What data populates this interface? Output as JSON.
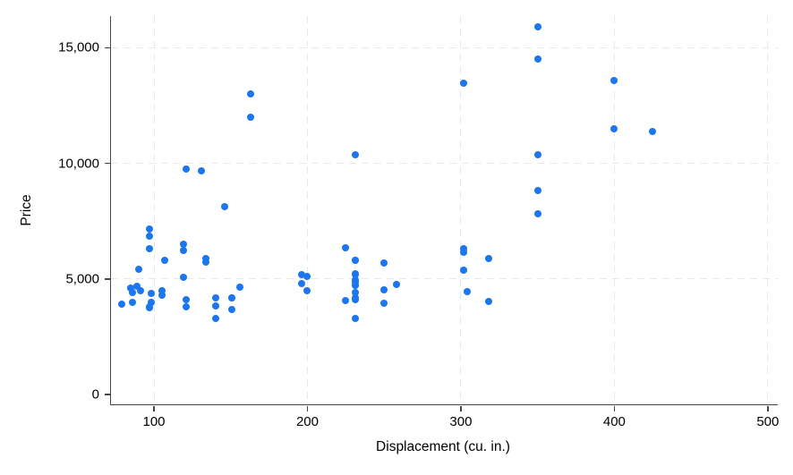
{
  "chart_data": {
    "type": "scatter",
    "title": "",
    "xlabel": "Displacement (cu. in.)",
    "ylabel": "Price",
    "legend": "none",
    "grid": "dashed light-gray gridlines at every labeled tick (no gridline at y=0)",
    "x_ticks": {
      "values": [
        100,
        200,
        300,
        400,
        500
      ],
      "labels": [
        "100",
        "200",
        "300",
        "400",
        "500"
      ]
    },
    "y_ticks": {
      "values": [
        0,
        5000,
        10000,
        15000
      ],
      "labels": [
        "0",
        "5,000",
        "10,000",
        "15,000"
      ]
    },
    "x_domain": [
      72,
      506.5
    ],
    "y_domain": [
      -426,
      16365
    ],
    "style": {
      "marker_color": "#1c76ee",
      "marker_diameter_px": 8,
      "axis_color": "#454545",
      "grid_color": "#e9e9e9",
      "label_color": "#000000",
      "background": "#ffffff"
    },
    "points": [
      [
        79,
        3895
      ],
      [
        85,
        4589
      ],
      [
        86,
        3995
      ],
      [
        86,
        4425
      ],
      [
        89,
        4697
      ],
      [
        90,
        5397
      ],
      [
        91,
        4499
      ],
      [
        97,
        3748
      ],
      [
        97,
        3798
      ],
      [
        97,
        6295
      ],
      [
        97,
        6850
      ],
      [
        97,
        7140
      ],
      [
        98,
        3984
      ],
      [
        98,
        4389
      ],
      [
        105,
        4296
      ],
      [
        105,
        4482
      ],
      [
        107,
        5799
      ],
      [
        119,
        5079
      ],
      [
        119,
        6229
      ],
      [
        119,
        6486
      ],
      [
        121,
        3799
      ],
      [
        121,
        4099
      ],
      [
        121,
        9735
      ],
      [
        131,
        9690
      ],
      [
        134,
        5719
      ],
      [
        134,
        5899
      ],
      [
        140,
        3291
      ],
      [
        140,
        3829
      ],
      [
        140,
        4187
      ],
      [
        146,
        8129
      ],
      [
        151,
        3667
      ],
      [
        151,
        4172
      ],
      [
        151,
        4195
      ],
      [
        156,
        4647
      ],
      [
        163,
        11995
      ],
      [
        163,
        12990
      ],
      [
        196,
        4816
      ],
      [
        196,
        5189
      ],
      [
        200,
        4504
      ],
      [
        200,
        5104
      ],
      [
        225,
        4060
      ],
      [
        225,
        6342
      ],
      [
        231,
        3299
      ],
      [
        231,
        4082
      ],
      [
        231,
        4181
      ],
      [
        231,
        4424
      ],
      [
        231,
        4723
      ],
      [
        231,
        4733
      ],
      [
        231,
        4890
      ],
      [
        231,
        4934
      ],
      [
        231,
        5172
      ],
      [
        231,
        5222
      ],
      [
        231,
        5788
      ],
      [
        231,
        5798
      ],
      [
        231,
        10372
      ],
      [
        250,
        3955
      ],
      [
        250,
        4516
      ],
      [
        250,
        5705
      ],
      [
        258,
        4749
      ],
      [
        302,
        5379
      ],
      [
        302,
        6165
      ],
      [
        302,
        6303
      ],
      [
        302,
        13466
      ],
      [
        304,
        4453
      ],
      [
        318,
        4010
      ],
      [
        318,
        5886
      ],
      [
        350,
        7827
      ],
      [
        350,
        8814
      ],
      [
        350,
        10371
      ],
      [
        350,
        14500
      ],
      [
        350,
        15906
      ],
      [
        400,
        11497
      ],
      [
        400,
        13594
      ],
      [
        425,
        11385
      ]
    ]
  }
}
